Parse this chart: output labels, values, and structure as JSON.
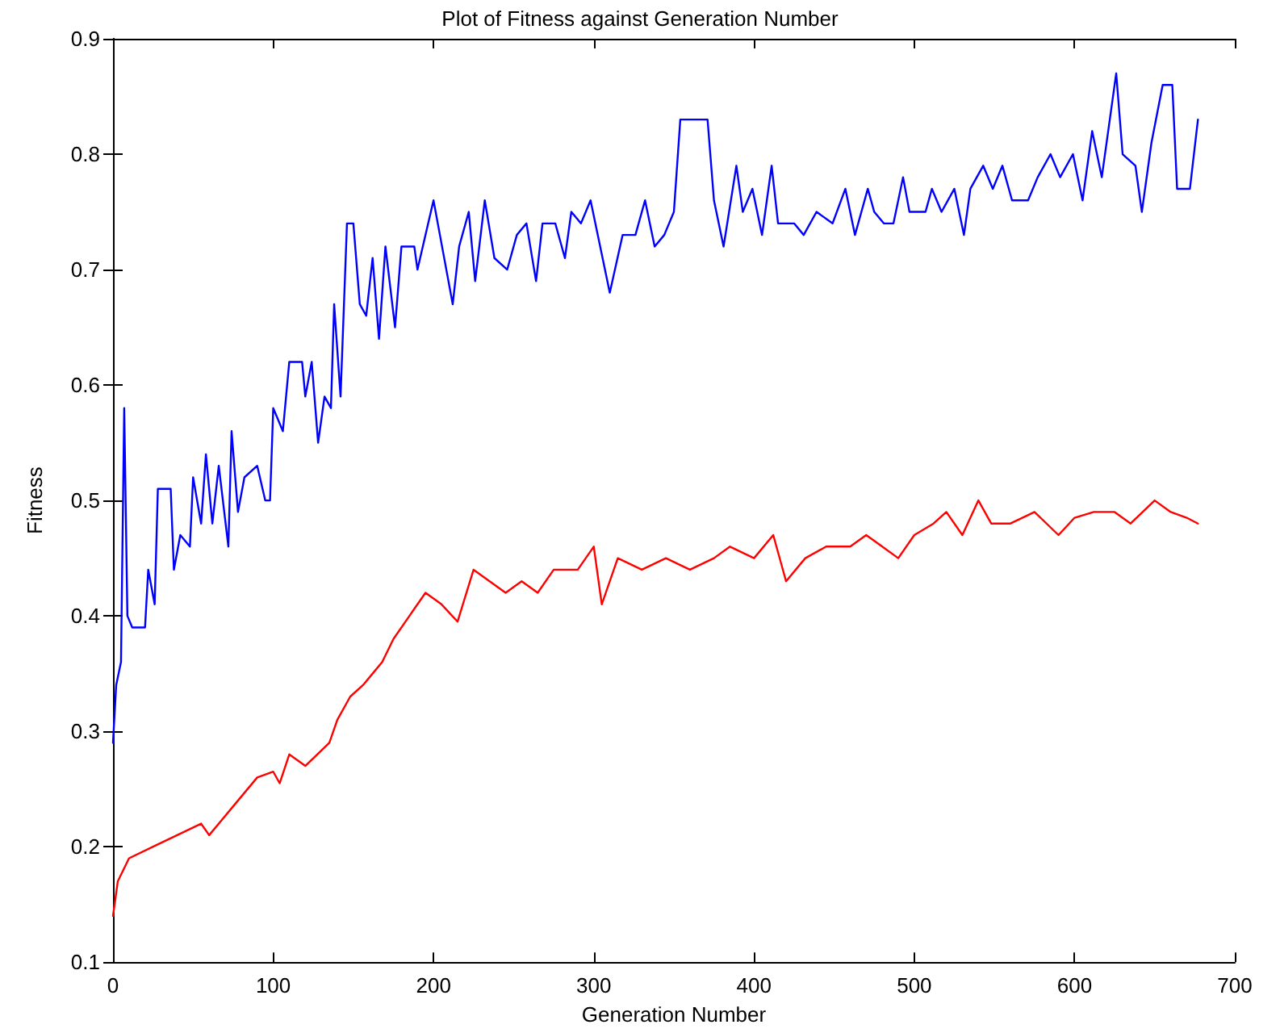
{
  "chart_data": {
    "type": "line",
    "title": "Plot of Fitness against Generation Number",
    "xlabel": "Generation Number",
    "ylabel": "Fitness",
    "xlim": [
      0,
      700
    ],
    "xticks": [
      0,
      100,
      200,
      300,
      400,
      500,
      600,
      700
    ],
    "ylim": [
      0.1,
      0.9
    ],
    "yticks": [
      0.1,
      0.2,
      0.3,
      0.4,
      0.5,
      0.6,
      0.7,
      0.8,
      0.9
    ],
    "grid": false,
    "marker": "none",
    "line_style": "solid",
    "series": [
      {
        "color": "#0000ff",
        "x": [
          0,
          2,
          5,
          7,
          9,
          12,
          20,
          22,
          26,
          28,
          36,
          38,
          42,
          48,
          50,
          55,
          58,
          62,
          66,
          72,
          74,
          78,
          82,
          90,
          95,
          98,
          100,
          106,
          110,
          118,
          120,
          124,
          128,
          132,
          136,
          138,
          142,
          146,
          150,
          154,
          158,
          162,
          166,
          170,
          176,
          180,
          188,
          190,
          200,
          204,
          212,
          216,
          222,
          226,
          232,
          238,
          246,
          252,
          258,
          264,
          268,
          276,
          282,
          286,
          292,
          298,
          304,
          310,
          318,
          326,
          332,
          338,
          344,
          350,
          354,
          371,
          375,
          381,
          389,
          393,
          399,
          405,
          411,
          415,
          425,
          431,
          439,
          449,
          457,
          463,
          471,
          475,
          481,
          487,
          493,
          497,
          507,
          511,
          517,
          525,
          531,
          535,
          543,
          549,
          555,
          561,
          571,
          577,
          585,
          591,
          599,
          605,
          611,
          617,
          626,
          630,
          638,
          642,
          648,
          655,
          661,
          664,
          672,
          677
        ],
        "values": [
          0.29,
          0.34,
          0.36,
          0.58,
          0.4,
          0.39,
          0.39,
          0.44,
          0.41,
          0.51,
          0.51,
          0.44,
          0.47,
          0.46,
          0.52,
          0.48,
          0.54,
          0.48,
          0.53,
          0.46,
          0.56,
          0.49,
          0.52,
          0.53,
          0.5,
          0.5,
          0.58,
          0.56,
          0.62,
          0.62,
          0.59,
          0.62,
          0.55,
          0.59,
          0.58,
          0.67,
          0.59,
          0.74,
          0.74,
          0.67,
          0.66,
          0.71,
          0.64,
          0.72,
          0.65,
          0.72,
          0.72,
          0.7,
          0.76,
          0.73,
          0.67,
          0.72,
          0.75,
          0.69,
          0.76,
          0.71,
          0.7,
          0.73,
          0.74,
          0.69,
          0.74,
          0.74,
          0.71,
          0.75,
          0.74,
          0.76,
          0.72,
          0.68,
          0.73,
          0.73,
          0.76,
          0.72,
          0.73,
          0.75,
          0.83,
          0.83,
          0.76,
          0.72,
          0.79,
          0.75,
          0.77,
          0.73,
          0.79,
          0.74,
          0.74,
          0.73,
          0.75,
          0.74,
          0.77,
          0.73,
          0.77,
          0.75,
          0.74,
          0.74,
          0.78,
          0.75,
          0.75,
          0.77,
          0.75,
          0.77,
          0.73,
          0.77,
          0.79,
          0.77,
          0.79,
          0.76,
          0.76,
          0.78,
          0.8,
          0.78,
          0.8,
          0.76,
          0.82,
          0.78,
          0.87,
          0.8,
          0.79,
          0.75,
          0.81,
          0.86,
          0.86,
          0.77,
          0.77,
          0.83
        ]
      },
      {
        "color": "#ff0000",
        "x": [
          0,
          3,
          10,
          25,
          40,
          55,
          60,
          75,
          90,
          100,
          104,
          110,
          120,
          135,
          140,
          148,
          156,
          162,
          168,
          175,
          185,
          195,
          205,
          215,
          225,
          235,
          245,
          255,
          265,
          275,
          290,
          300,
          305,
          315,
          330,
          345,
          360,
          375,
          385,
          400,
          412,
          420,
          432,
          445,
          460,
          470,
          480,
          490,
          500,
          512,
          520,
          530,
          540,
          548,
          560,
          575,
          590,
          600,
          612,
          625,
          635,
          650,
          660,
          670,
          677
        ],
        "values": [
          0.14,
          0.17,
          0.19,
          0.2,
          0.21,
          0.22,
          0.21,
          0.235,
          0.26,
          0.265,
          0.255,
          0.28,
          0.27,
          0.29,
          0.31,
          0.33,
          0.34,
          0.35,
          0.36,
          0.38,
          0.4,
          0.42,
          0.41,
          0.395,
          0.44,
          0.43,
          0.42,
          0.43,
          0.42,
          0.44,
          0.44,
          0.46,
          0.41,
          0.45,
          0.44,
          0.45,
          0.44,
          0.45,
          0.46,
          0.45,
          0.47,
          0.43,
          0.45,
          0.46,
          0.46,
          0.47,
          0.46,
          0.45,
          0.47,
          0.48,
          0.49,
          0.47,
          0.5,
          0.48,
          0.48,
          0.49,
          0.47,
          0.485,
          0.49,
          0.49,
          0.48,
          0.5,
          0.49,
          0.485,
          0.48
        ]
      }
    ]
  }
}
